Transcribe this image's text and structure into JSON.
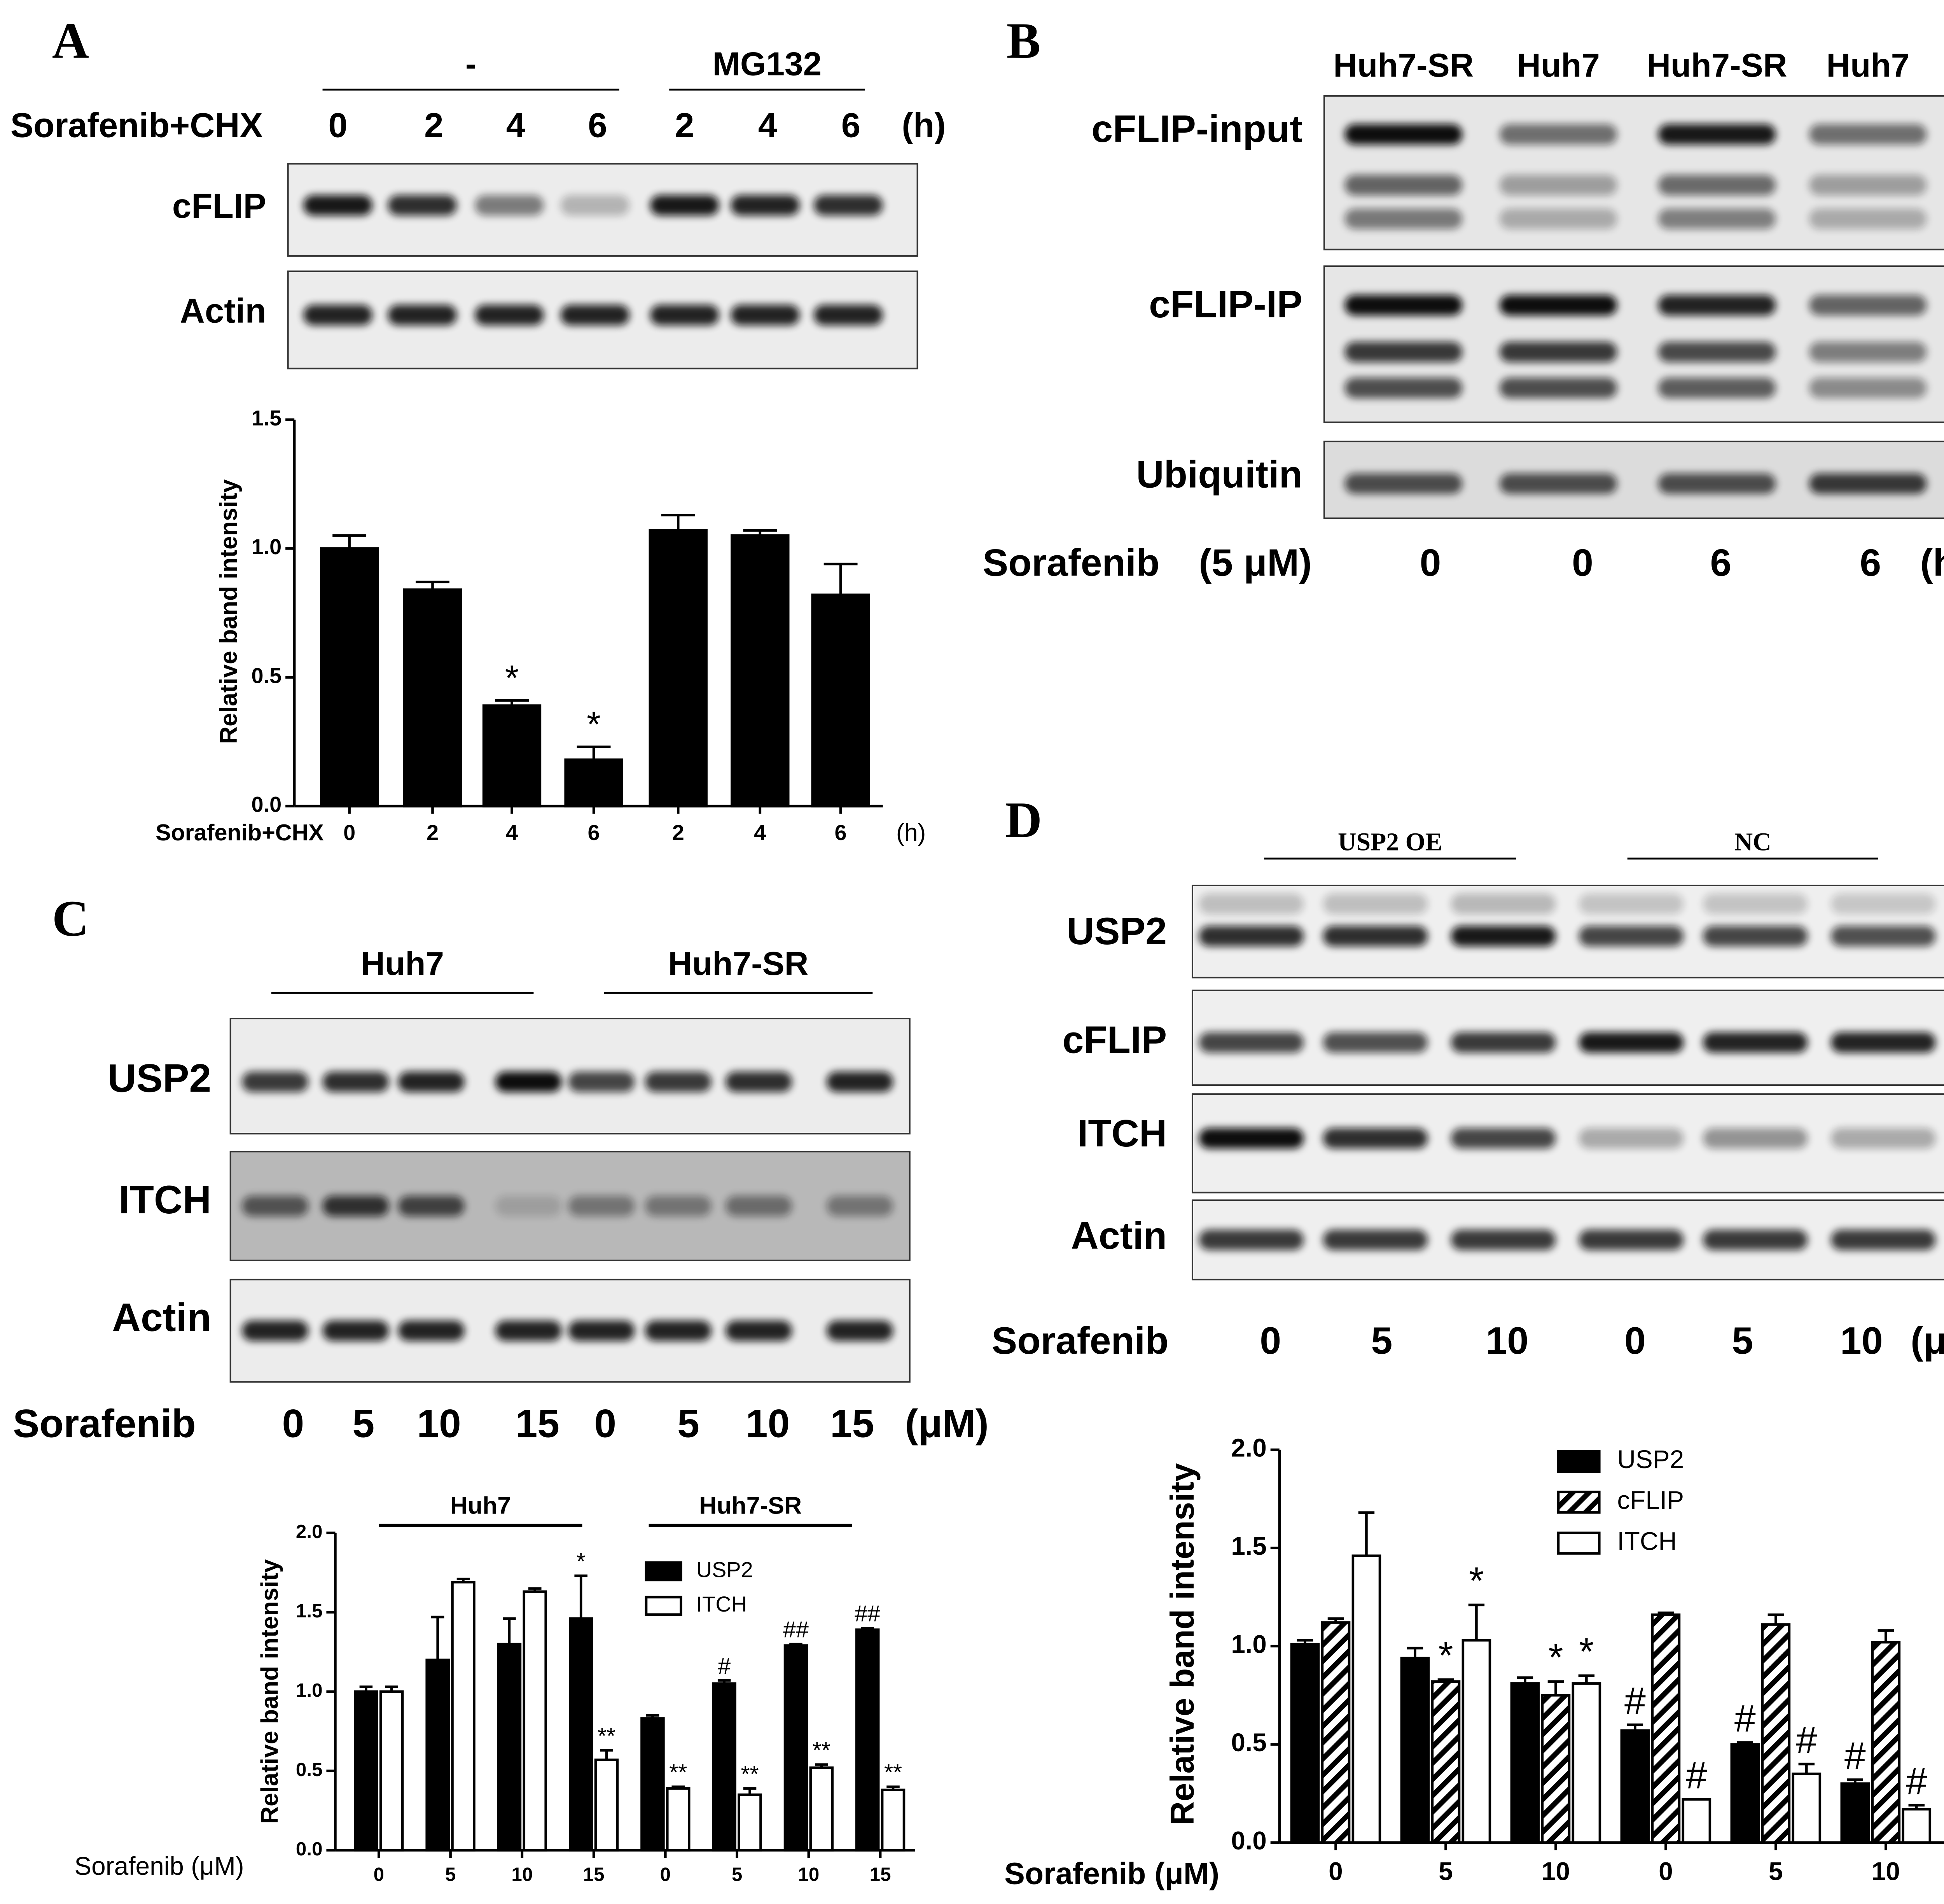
{
  "blots": [
    {
      "label": "A",
      "groups": [
        "-",
        "MG132"
      ],
      "treatment": "Sorafenib+CHX",
      "lanes": [
        "0",
        "2",
        "4",
        "6",
        "2",
        "4",
        "6"
      ],
      "unit": "(h)",
      "rows": [
        "cFLIP",
        "Actin"
      ]
    },
    {
      "label": "B",
      "headers": [
        "Huh7-SR",
        "Huh7",
        "Huh7-SR",
        "Huh7"
      ],
      "rows": [
        "cFLIP-input",
        "cFLIP-IP",
        "Ubiquitin"
      ],
      "treatment": "Sorafenib",
      "dose": "(5 μM)",
      "lanes": [
        "0",
        "0",
        "6",
        "6"
      ],
      "unit": "(h)"
    },
    {
      "label": "C",
      "groups": [
        "Huh7",
        "Huh7-SR"
      ],
      "rows": [
        "USP2",
        "ITCH",
        "Actin"
      ],
      "treatment": "Sorafenib",
      "lanes": [
        "0",
        "5",
        "10",
        "15",
        "0",
        "5",
        "10",
        "15"
      ],
      "unit": "(μM)"
    },
    {
      "label": "D",
      "groups": [
        "USP2 OE",
        "NC"
      ],
      "rows": [
        "USP2",
        "cFLIP",
        "ITCH",
        "Actin"
      ],
      "treatment": "Sorafenib",
      "lanes": [
        "0",
        "5",
        "10",
        "0",
        "5",
        "10"
      ],
      "unit": "(μM)"
    }
  ],
  "chart_data": [
    {
      "type": "bar",
      "ylabel": "Relative band intensity",
      "xlabel": "Sorafenib+CHX",
      "x_unit": "(h)",
      "categories": [
        "0",
        "2",
        "4",
        "6",
        "2",
        "4",
        "6"
      ],
      "series": [
        {
          "color": "#000000",
          "values": [
            1.0,
            0.84,
            0.39,
            0.18,
            1.07,
            1.05,
            0.82
          ],
          "errors": [
            0.05,
            0.03,
            0.02,
            0.05,
            0.06,
            0.02,
            0.12
          ],
          "annotations": [
            null,
            null,
            "*",
            "*",
            null,
            null,
            null
          ]
        }
      ],
      "ylim": [
        0,
        1.5
      ],
      "yticks": [
        {
          "value": 0,
          "label": "0.0"
        },
        {
          "value": 0.5,
          "label": "0.5"
        },
        {
          "value": 1,
          "label": "1.0"
        },
        {
          "value": 1.5,
          "label": "1.5"
        }
      ]
    },
    {
      "type": "bar",
      "ylabel": "Relative band intensity",
      "xlabel": "Sorafenib (μM)",
      "groups": [
        "Huh7",
        "Huh7-SR"
      ],
      "categories": [
        "0",
        "5",
        "10",
        "15",
        "0",
        "5",
        "10",
        "15"
      ],
      "series": [
        {
          "name": "USP2",
          "color": "#000000",
          "values": [
            1.0,
            1.2,
            1.3,
            1.46,
            0.83,
            1.05,
            1.29,
            1.39
          ],
          "errors": [
            0.03,
            0.27,
            0.16,
            0.27,
            0.02,
            0.02,
            0.01,
            0.01
          ],
          "annotations": [
            null,
            null,
            null,
            "*",
            null,
            "#",
            "##",
            "##"
          ]
        },
        {
          "name": "ITCH",
          "color": "#ffffff",
          "values": [
            1.0,
            1.69,
            1.63,
            0.57,
            0.39,
            0.35,
            0.52,
            0.38
          ],
          "errors": [
            0.03,
            0.02,
            0.02,
            0.06,
            0.01,
            0.04,
            0.02,
            0.02
          ],
          "annotations": [
            null,
            null,
            null,
            "**",
            "**",
            "**",
            "**",
            "**"
          ]
        }
      ],
      "ylim": [
        0,
        2
      ],
      "yticks": [
        {
          "value": 0,
          "label": "0.0"
        },
        {
          "value": 0.5,
          "label": "0.5"
        },
        {
          "value": 1,
          "label": "1.0"
        },
        {
          "value": 1.5,
          "label": "1.5"
        },
        {
          "value": 2,
          "label": "2.0"
        }
      ]
    },
    {
      "type": "bar",
      "ylabel": "Relative band intensity",
      "xlabel": "Sorafenib (μM)",
      "categories": [
        "0",
        "5",
        "10",
        "0",
        "5",
        "10"
      ],
      "series": [
        {
          "name": "USP2",
          "color": "#000000",
          "values": [
            1.01,
            0.94,
            0.81,
            0.57,
            0.5,
            0.3
          ],
          "errors": [
            0.02,
            0.05,
            0.03,
            0.03,
            0.01,
            0.02
          ],
          "annotations": [
            null,
            null,
            null,
            "#",
            "#",
            "#"
          ]
        },
        {
          "name": "cFLIP",
          "color": "#000000",
          "pattern": "hatch",
          "values": [
            1.12,
            0.82,
            0.75,
            1.16,
            1.11,
            1.02
          ],
          "errors": [
            0.02,
            0.01,
            0.07,
            0.01,
            0.05,
            0.06
          ],
          "annotations": [
            null,
            "*",
            "*",
            null,
            null,
            null
          ]
        },
        {
          "name": "ITCH",
          "color": "#ffffff",
          "values": [
            1.46,
            1.03,
            0.81,
            0.22,
            0.35,
            0.17
          ],
          "errors": [
            0.22,
            0.18,
            0.04,
            0.0,
            0.05,
            0.02
          ],
          "annotations": [
            null,
            "*",
            "*",
            "#",
            "#",
            "#"
          ]
        }
      ],
      "ylim": [
        0,
        2
      ],
      "yticks": [
        {
          "value": 0,
          "label": "0.0"
        },
        {
          "value": 0.5,
          "label": "0.5"
        },
        {
          "value": 1,
          "label": "1.0"
        },
        {
          "value": 1.5,
          "label": "1.5"
        },
        {
          "value": 2,
          "label": "2.0"
        }
      ]
    }
  ]
}
